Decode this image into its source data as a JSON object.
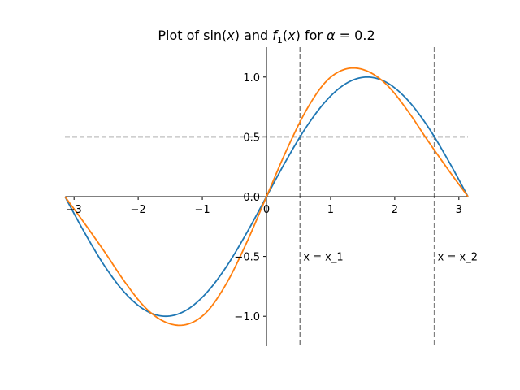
{
  "chart_data": {
    "type": "line",
    "title": "Plot of sin(x) and f₁(x) for α = 0.2",
    "title_parts": {
      "prefix": "Plot of sin(",
      "x1": "x",
      "mid1": ") and ",
      "f": "f",
      "sub": "1",
      "mid2": "(",
      "x2": "x",
      "mid3": ") for ",
      "alpha": "α",
      "eq": " = 0.2"
    },
    "xlabel": "",
    "ylabel": "",
    "xlim": [
      -3.14159,
      3.14159
    ],
    "ylim": [
      -1.25,
      1.25
    ],
    "x_ticks": [
      -3,
      -2,
      -1,
      0,
      1,
      2,
      3
    ],
    "x_tick_labels": [
      "−3",
      "−2",
      "−1",
      "0",
      "1",
      "2",
      "3"
    ],
    "y_ticks": [
      -1.0,
      -0.5,
      0.0,
      0.5,
      1.0
    ],
    "y_tick_labels": [
      "−1.0",
      "−0.5",
      "0.0",
      "0.5",
      "1.0"
    ],
    "grid": false,
    "spines": "centered at origin",
    "series": [
      {
        "color": "#1f77b4",
        "x": [
          -3.1416,
          -2.8274,
          -2.5133,
          -2.1991,
          -1.885,
          -1.5708,
          -1.2566,
          -0.9425,
          -0.6283,
          -0.3142,
          0.0,
          0.3142,
          0.6283,
          0.9425,
          1.2566,
          1.5708,
          1.885,
          2.1991,
          2.5133,
          2.8274,
          3.1416
        ],
        "y": [
          0.0,
          -0.309,
          -0.588,
          -0.809,
          -0.951,
          -1.0,
          -0.951,
          -0.809,
          -0.588,
          -0.309,
          0.0,
          0.309,
          0.588,
          0.809,
          0.951,
          1.0,
          0.951,
          0.809,
          0.588,
          0.309,
          0.0
        ]
      },
      {
        "color": "#ff7f0e",
        "x": [
          -3.1416,
          -2.8274,
          -2.5133,
          -2.1991,
          -1.885,
          -1.5708,
          -1.2566,
          -0.9425,
          -0.6283,
          -0.3142,
          0.0,
          0.3142,
          0.6283,
          0.9425,
          1.2566,
          1.5708,
          1.885,
          2.1991,
          2.5133,
          2.8274,
          3.1416
        ],
        "y": [
          0.0,
          -0.23,
          -0.47,
          -0.72,
          -0.93,
          -1.05,
          -1.07,
          -0.97,
          -0.73,
          -0.39,
          0.0,
          0.39,
          0.73,
          0.97,
          1.07,
          1.05,
          0.93,
          0.72,
          0.47,
          0.23,
          0.0
        ]
      }
    ],
    "reference_lines": [
      {
        "orientation": "horizontal",
        "value": 0.5,
        "style": "dashed",
        "color": "#808080"
      },
      {
        "orientation": "vertical",
        "value": 0.5236,
        "style": "dashed",
        "color": "#808080",
        "label": "x = x_1"
      },
      {
        "orientation": "vertical",
        "value": 2.618,
        "style": "dashed",
        "color": "#808080",
        "label": "x = x_2"
      }
    ],
    "annotations": [
      {
        "text": "x = x_1",
        "x": 0.5236,
        "y": -0.5
      },
      {
        "text": "x = x_2",
        "x": 2.618,
        "y": -0.5
      }
    ]
  }
}
